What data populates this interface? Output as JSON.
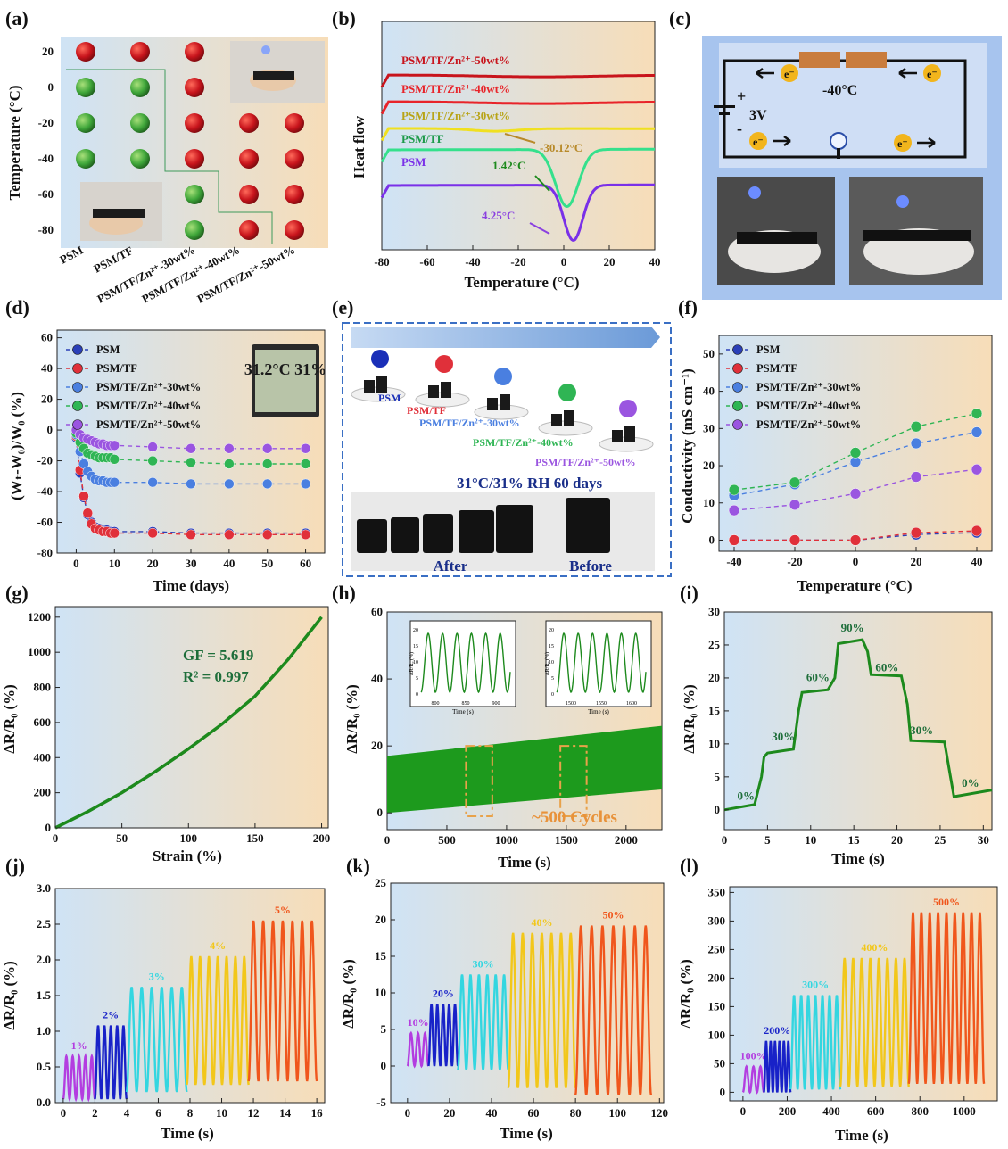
{
  "panel_labels": [
    "(a)",
    "(b)",
    "(c)",
    "(d)",
    "(e)",
    "(f)",
    "(g)",
    "(h)",
    "(i)",
    "(j)",
    "(k)",
    "(l)"
  ],
  "colors": {
    "psm": "#2a3fb8",
    "tf": "#e0303a",
    "zn30": "#4a7fe0",
    "zn40": "#2fb554",
    "zn50": "#9a55e0",
    "frozen": "#c8141c",
    "liquid": "#3fa63a",
    "green_line": "#1d8a1d",
    "bg_blue": "#cfe3f5",
    "bg_orange": "#f7ddb8"
  },
  "chart_data": [
    {
      "panel": "(a)",
      "type": "scatter",
      "ylabel": "Temperature (°C)",
      "categories": [
        "PSM",
        "PSM/TF",
        "PSM/TF/Zn²⁺-30wt%",
        "PSM/TF/Zn²⁺-40wt%",
        "PSM/TF/Zn²⁺-50wt%"
      ],
      "y_ticks": [
        20,
        0,
        -20,
        -40,
        -60,
        -80
      ],
      "ylim": [
        -90,
        28
      ],
      "states_note": "red = frozen, green = unfrozen",
      "points": [
        {
          "cat": 0,
          "y": 20,
          "s": "r"
        },
        {
          "cat": 1,
          "y": 20,
          "s": "r"
        },
        {
          "cat": 2,
          "y": 20,
          "s": "r"
        },
        {
          "cat": 0,
          "y": 0,
          "s": "g"
        },
        {
          "cat": 1,
          "y": 0,
          "s": "g"
        },
        {
          "cat": 2,
          "y": 0,
          "s": "r"
        },
        {
          "cat": 0,
          "y": -20,
          "s": "g"
        },
        {
          "cat": 1,
          "y": -20,
          "s": "g"
        },
        {
          "cat": 2,
          "y": -20,
          "s": "r"
        },
        {
          "cat": 3,
          "y": -20,
          "s": "r"
        },
        {
          "cat": 4,
          "y": -20,
          "s": "r"
        },
        {
          "cat": 0,
          "y": -40,
          "s": "g"
        },
        {
          "cat": 1,
          "y": -40,
          "s": "g"
        },
        {
          "cat": 2,
          "y": -40,
          "s": "r"
        },
        {
          "cat": 3,
          "y": -40,
          "s": "r"
        },
        {
          "cat": 4,
          "y": -40,
          "s": "r"
        },
        {
          "cat": 2,
          "y": -60,
          "s": "g"
        },
        {
          "cat": 3,
          "y": -60,
          "s": "r"
        },
        {
          "cat": 4,
          "y": -60,
          "s": "r"
        },
        {
          "cat": 2,
          "y": -80,
          "s": "g"
        },
        {
          "cat": 3,
          "y": -80,
          "s": "r"
        },
        {
          "cat": 4,
          "y": -80,
          "s": "r"
        }
      ]
    },
    {
      "panel": "(b)",
      "type": "line",
      "xlabel": "Temperature (°C)",
      "ylabel": "Heat flow",
      "xlim": [
        -80,
        40
      ],
      "x_ticks": [
        -80,
        -60,
        -40,
        -20,
        0,
        20,
        40
      ],
      "series": [
        {
          "name": "PSM/TF/Zn²⁺-50wt%",
          "color": "#c8141c"
        },
        {
          "name": "PSM/TF/Zn²⁺-40wt%",
          "color": "#e8242a"
        },
        {
          "name": "PSM/TF/Zn²⁺-30wt%",
          "color": "#f0e020"
        },
        {
          "name": "PSM/TF",
          "color": "#35e08c"
        },
        {
          "name": "PSM",
          "color": "#7a30e8"
        }
      ],
      "annotations": [
        "-30.12°C",
        "1.42°C",
        "4.25°C"
      ]
    },
    {
      "panel": "(c)",
      "type": "diagram",
      "labels": {
        "temp": "-40°C",
        "voltage": "3V",
        "electron": "e⁻"
      }
    },
    {
      "panel": "(d)",
      "type": "line",
      "xlabel": "Time (days)",
      "ylabel": "(Wₜ-W₀)/W₀ (%)",
      "xlim": [
        -5,
        65
      ],
      "ylim": [
        -80,
        65
      ],
      "x_ticks": [
        0,
        10,
        20,
        30,
        40,
        50,
        60
      ],
      "y_ticks": [
        60,
        40,
        20,
        0,
        -20,
        -40,
        -60,
        -80
      ],
      "x": [
        0,
        1,
        2,
        3,
        4,
        5,
        6,
        7,
        8,
        9,
        10,
        20,
        30,
        40,
        50,
        60
      ],
      "series": [
        {
          "name": "PSM",
          "color": "#2a3fb8",
          "values": [
            -5,
            -28,
            -44,
            -55,
            -60,
            -63,
            -64,
            -65,
            -65,
            -66,
            -66,
            -66,
            -67,
            -67,
            -67,
            -67
          ]
        },
        {
          "name": "PSM/TF",
          "color": "#e0303a",
          "values": [
            -4,
            -26,
            -43,
            -54,
            -61,
            -64,
            -65,
            -66,
            -66,
            -67,
            -67,
            -67,
            -68,
            -68,
            -68,
            -68
          ]
        },
        {
          "name": "PSM/TF/Zn²⁺-30wt%",
          "color": "#4a7fe0",
          "values": [
            -3,
            -14,
            -22,
            -27,
            -30,
            -32,
            -33,
            -33,
            -34,
            -34,
            -34,
            -34,
            -35,
            -35,
            -35,
            -35
          ]
        },
        {
          "name": "PSM/TF/Zn²⁺-40wt%",
          "color": "#2fb554",
          "values": [
            -2,
            -8,
            -12,
            -15,
            -16,
            -17,
            -18,
            -18,
            -18,
            -18,
            -19,
            -20,
            -21,
            -22,
            -22,
            -22
          ]
        },
        {
          "name": "PSM/TF/Zn²⁺-50wt%",
          "color": "#9a55e0",
          "values": [
            0,
            -3,
            -5,
            -6,
            -7,
            -8,
            -9,
            -9,
            -10,
            -10,
            -10,
            -11,
            -12,
            -12,
            -12,
            -12
          ]
        }
      ],
      "inset_text": "31.2°C 31%"
    },
    {
      "panel": "(e)",
      "type": "diagram",
      "labels": [
        "PSM",
        "PSM/TF",
        "PSM/TF/Zn²⁺-30wt%",
        "PSM/TF/Zn²⁺-40wt%",
        "PSM/TF/Zn²⁺-50wt%"
      ],
      "condition": "31°C/31% RH 60 days",
      "after": "After",
      "before": "Before"
    },
    {
      "panel": "(f)",
      "type": "line",
      "xlabel": "Temperature (°C)",
      "ylabel": "Conductivity (mS cm⁻¹)",
      "xlim": [
        -45,
        45
      ],
      "ylim": [
        -3,
        55
      ],
      "x_ticks": [
        -40,
        -20,
        0,
        20,
        40
      ],
      "y_ticks": [
        0,
        10,
        20,
        30,
        40,
        50
      ],
      "x": [
        -40,
        -20,
        0,
        20,
        40
      ],
      "series": [
        {
          "name": "PSM",
          "color": "#2a3fb8",
          "values": [
            0,
            0,
            0,
            1.5,
            2
          ]
        },
        {
          "name": "PSM/TF",
          "color": "#e0303a",
          "values": [
            0,
            0,
            0,
            2,
            2.5
          ]
        },
        {
          "name": "PSM/TF/Zn²⁺-30wt%",
          "color": "#4a7fe0",
          "values": [
            12,
            15,
            21,
            26,
            29
          ]
        },
        {
          "name": "PSM/TF/Zn²⁺-40wt%",
          "color": "#2fb554",
          "values": [
            13.5,
            15.5,
            23.5,
            30.5,
            34
          ]
        },
        {
          "name": "PSM/TF/Zn²⁺-50wt%",
          "color": "#9a55e0",
          "values": [
            8,
            9.5,
            12.5,
            17,
            19
          ]
        }
      ]
    },
    {
      "panel": "(g)",
      "type": "line",
      "xlabel": "Strain (%)",
      "ylabel": "ΔR/R₀ (%)",
      "xlim": [
        0,
        205
      ],
      "ylim": [
        0,
        1260
      ],
      "x_ticks": [
        0,
        50,
        100,
        150,
        200
      ],
      "y_ticks": [
        0,
        200,
        400,
        600,
        800,
        1000,
        1200
      ],
      "x": [
        0,
        25,
        50,
        75,
        100,
        125,
        150,
        175,
        200
      ],
      "values": [
        0,
        95,
        200,
        320,
        450,
        590,
        750,
        960,
        1200
      ],
      "annotations": [
        "GF = 5.619",
        "R² = 0.997"
      ]
    },
    {
      "panel": "(h)",
      "type": "area",
      "xlabel": "Time (s)",
      "ylabel": "ΔR/R₀ (%)",
      "xlim": [
        0,
        2300
      ],
      "ylim": [
        -5,
        60
      ],
      "x_ticks": [
        0,
        500,
        1000,
        1500,
        2000
      ],
      "y_ticks": [
        0,
        20,
        40,
        60
      ],
      "band": {
        "x": [
          0,
          2300
        ],
        "low": [
          0,
          7
        ],
        "high": [
          17,
          26
        ]
      },
      "annotation": "~500 Cycles",
      "insets": [
        {
          "xlabel": "Time (s)",
          "ylabel": "ΔR/R₀ (%)",
          "x_ticks": [
            "800",
            "850",
            "900"
          ],
          "y_ticks": [
            "0",
            "5",
            "10",
            "15",
            "20"
          ]
        },
        {
          "xlabel": "Time (s)",
          "ylabel": "ΔR/R₀ (%)",
          "x_ticks": [
            "1500",
            "1550",
            "1600"
          ],
          "y_ticks": [
            "0",
            "5",
            "10",
            "15",
            "20"
          ]
        }
      ]
    },
    {
      "panel": "(i)",
      "type": "line",
      "xlabel": "Time (s)",
      "ylabel": "ΔR/R₀ (%)",
      "xlim": [
        0,
        31
      ],
      "ylim": [
        -3,
        30
      ],
      "x_ticks": [
        0,
        5,
        10,
        15,
        20,
        25,
        30
      ],
      "y_ticks": [
        0,
        5,
        10,
        15,
        20,
        25,
        30
      ],
      "x": [
        0,
        3.5,
        4.3,
        4.6,
        5,
        8,
        8.6,
        9,
        12,
        12.8,
        13.2,
        16,
        16.6,
        17,
        20.5,
        21.2,
        21.6,
        25.5,
        26.2,
        26.6,
        31
      ],
      "values": [
        0,
        0.8,
        5,
        8,
        8.6,
        9.2,
        15,
        17.8,
        18.2,
        20,
        25.2,
        25.8,
        24,
        20.5,
        20.3,
        16,
        10.5,
        10.3,
        5,
        2,
        3
      ],
      "step_labels": [
        "0%",
        "30%",
        "60%",
        "90%",
        "60%",
        "30%",
        "0%"
      ]
    },
    {
      "panel": "(j)",
      "type": "line",
      "xlabel": "Time (s)",
      "ylabel": "ΔR/R₀ (%)",
      "xlim": [
        -0.5,
        16.5
      ],
      "ylim": [
        0,
        3.0
      ],
      "x_ticks": [
        0,
        2,
        4,
        6,
        8,
        10,
        12,
        14,
        16
      ],
      "y_ticks": [
        0.0,
        0.5,
        1.0,
        1.5,
        2.0,
        2.5,
        3.0
      ],
      "segments": [
        {
          "label": "1%",
          "x0": 0,
          "x1": 2,
          "low": 0.05,
          "high": 0.65,
          "cycles": 5,
          "color": "#b33de0"
        },
        {
          "label": "2%",
          "x0": 2,
          "x1": 4,
          "low": 0.05,
          "high": 1.08,
          "cycles": 5,
          "color": "#1822c8"
        },
        {
          "label": "3%",
          "x0": 4,
          "x1": 7.8,
          "low": 0.15,
          "high": 1.62,
          "cycles": 6,
          "color": "#33d6e0"
        },
        {
          "label": "4%",
          "x0": 7.8,
          "x1": 11.7,
          "low": 0.25,
          "high": 2.05,
          "cycles": 7,
          "color": "#f2c71a"
        },
        {
          "label": "5%",
          "x0": 11.7,
          "x1": 16,
          "low": 0.3,
          "high": 2.55,
          "cycles": 7,
          "color": "#f0561c"
        }
      ]
    },
    {
      "panel": "(k)",
      "type": "line",
      "xlabel": "Time (s)",
      "ylabel": "ΔR/R₀ (%)",
      "xlim": [
        -8,
        122
      ],
      "ylim": [
        -5,
        25
      ],
      "x_ticks": [
        0,
        20,
        40,
        60,
        80,
        100,
        120
      ],
      "y_ticks": [
        -5,
        0,
        5,
        10,
        15,
        20,
        25
      ],
      "segments": [
        {
          "label": "10%",
          "x0": 0,
          "x1": 10,
          "low": 0,
          "high": 4.5,
          "cycles": 3,
          "color": "#b33de0"
        },
        {
          "label": "20%",
          "x0": 10,
          "x1": 24,
          "low": 0,
          "high": 8.5,
          "cycles": 5,
          "color": "#1822c8"
        },
        {
          "label": "30%",
          "x0": 24,
          "x1": 48,
          "low": -0.5,
          "high": 12.5,
          "cycles": 6,
          "color": "#33d6e0"
        },
        {
          "label": "40%",
          "x0": 48,
          "x1": 80,
          "low": -3,
          "high": 18.2,
          "cycles": 7,
          "color": "#f2c71a"
        },
        {
          "label": "50%",
          "x0": 80,
          "x1": 116,
          "low": -4,
          "high": 19.2,
          "cycles": 7,
          "color": "#f0561c"
        }
      ]
    },
    {
      "panel": "(l)",
      "type": "line",
      "xlabel": "Time (s)",
      "ylabel": "ΔR/R₀ (%)",
      "xlim": [
        -60,
        1150
      ],
      "ylim": [
        -15,
        360
      ],
      "x_ticks": [
        0,
        200,
        400,
        600,
        800,
        1000
      ],
      "y_ticks": [
        0,
        50,
        100,
        150,
        200,
        250,
        300,
        350
      ],
      "segments": [
        {
          "label": "100%",
          "x0": 0,
          "x1": 95,
          "low": 0,
          "high": 45,
          "cycles": 3,
          "color": "#b33de0"
        },
        {
          "label": "200%",
          "x0": 95,
          "x1": 215,
          "low": 0,
          "high": 90,
          "cycles": 6,
          "color": "#1822c8"
        },
        {
          "label": "300%",
          "x0": 215,
          "x1": 440,
          "low": 5,
          "high": 170,
          "cycles": 7,
          "color": "#33d6e0"
        },
        {
          "label": "400%",
          "x0": 440,
          "x1": 750,
          "low": 10,
          "high": 235,
          "cycles": 8,
          "color": "#f2c71a"
        },
        {
          "label": "500%",
          "x0": 750,
          "x1": 1090,
          "low": 15,
          "high": 315,
          "cycles": 9,
          "color": "#f0561c"
        }
      ]
    }
  ]
}
